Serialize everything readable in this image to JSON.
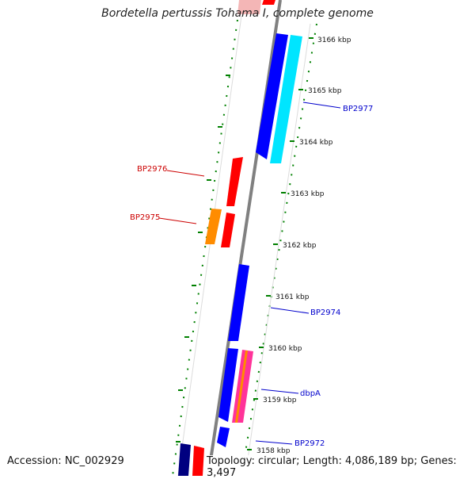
{
  "title": "Bordetella pertussis Tohama I, complete genome",
  "footer": {
    "accession": "Accession: NC_002929",
    "topology": "Topology: circular; Length: 4,086,189 bp; Genes: 3,497"
  },
  "scale_labels": [
    "3166 kbp",
    "3165 kbp",
    "3164 kbp",
    "3163 kbp",
    "3162 kbp",
    "3161 kbp",
    "3160 kbp",
    "3159 kbp",
    "3158 kbp"
  ],
  "gene_labels": [
    {
      "name": "BP2977",
      "color": "#0000cc"
    },
    {
      "name": "BP2976",
      "color": "#cc0000"
    },
    {
      "name": "BP2975",
      "color": "#cc0000"
    },
    {
      "name": "BP2974",
      "color": "#0000cc"
    },
    {
      "name": "dbpA",
      "color": "#0000cc"
    },
    {
      "name": "BP2972",
      "color": "#0000cc"
    }
  ],
  "colors": {
    "forward_gene": "#0000ff",
    "reverse_gene": "#ff0000",
    "highlight_cyan": "#00ffff",
    "orange_gene": "#ff8c00",
    "pink_gene": "#ff3399",
    "navy_gene": "#000080",
    "backbone": "#808080",
    "ticks": "#008000"
  }
}
